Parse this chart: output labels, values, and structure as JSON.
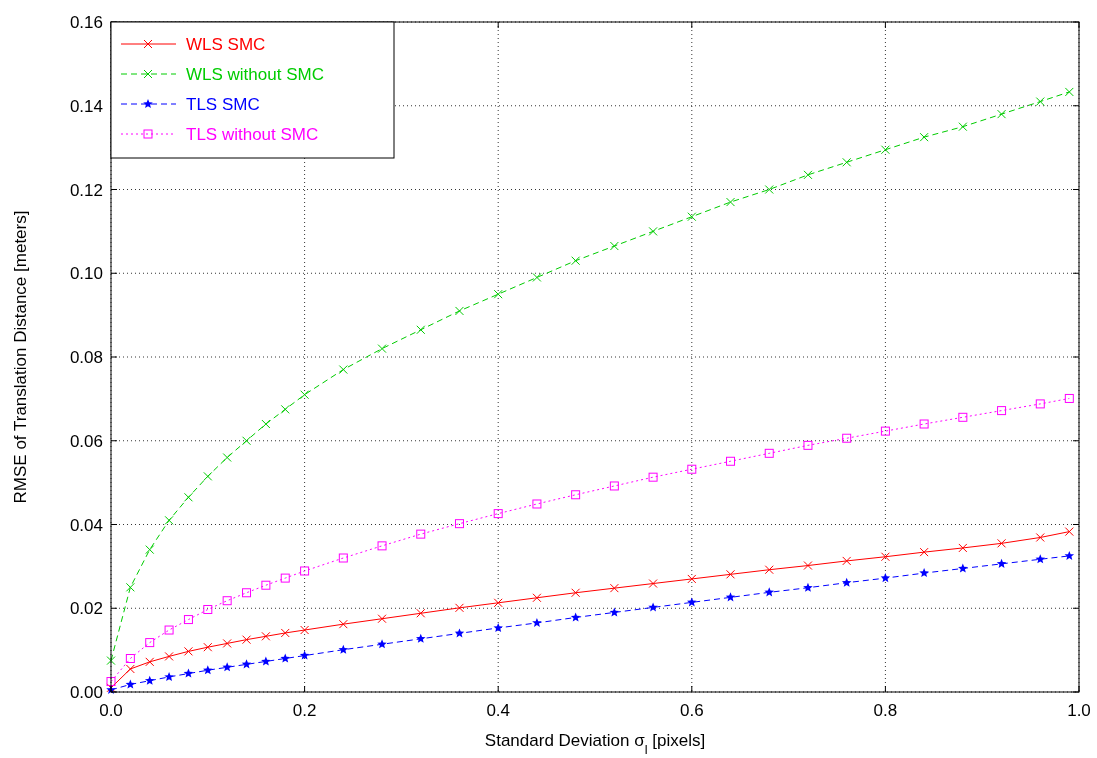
{
  "chart_data": {
    "type": "line",
    "xlabel": "Standard Deviation σ$_{l}$ [pixels]",
    "ylabel": "RMSE of Translation Distance [meters]",
    "xlim": [
      0,
      1
    ],
    "ylim": [
      0,
      0.16
    ],
    "xticks": [
      {
        "value": 0,
        "label": "0.0"
      },
      {
        "value": 0.2,
        "label": "0.2"
      },
      {
        "value": 0.4,
        "label": "0.4"
      },
      {
        "value": 0.6,
        "label": "0.6"
      },
      {
        "value": 0.8,
        "label": "0.8"
      },
      {
        "value": 1,
        "label": "1.0"
      }
    ],
    "yticks": [
      {
        "value": 0,
        "label": "0.00"
      },
      {
        "value": 0.02,
        "label": "0.02"
      },
      {
        "value": 0.04,
        "label": "0.04"
      },
      {
        "value": 0.06,
        "label": "0.06"
      },
      {
        "value": 0.08,
        "label": "0.08"
      },
      {
        "value": 0.1,
        "label": "0.10"
      },
      {
        "value": 0.12,
        "label": "0.12"
      },
      {
        "value": 0.14,
        "label": "0.14"
      },
      {
        "value": 0.16,
        "label": "0.16"
      }
    ],
    "grid": true,
    "legend": "top left",
    "x": [
      0,
      0.02,
      0.04,
      0.06,
      0.08,
      0.1,
      0.12,
      0.14,
      0.16,
      0.18,
      0.2,
      0.24,
      0.28,
      0.32,
      0.36,
      0.4,
      0.44,
      0.48,
      0.52,
      0.56,
      0.6,
      0.64,
      0.68,
      0.72,
      0.76,
      0.8,
      0.84,
      0.88,
      0.92,
      0.96,
      0.99
    ],
    "series": [
      {
        "name": "WLS SMC",
        "color": "#ff0000",
        "marker": "cross",
        "line_style": "solid",
        "values": [
          0.001,
          0.0055,
          0.0072,
          0.0085,
          0.0097,
          0.0107,
          0.0116,
          0.0125,
          0.0133,
          0.0141,
          0.0148,
          0.0162,
          0.0175,
          0.0188,
          0.0201,
          0.0213,
          0.0225,
          0.0237,
          0.0248,
          0.0259,
          0.027,
          0.0281,
          0.0292,
          0.0302,
          0.0313,
          0.0323,
          0.0334,
          0.0344,
          0.0355,
          0.0369,
          0.0383
        ]
      },
      {
        "name": "WLS without SMC",
        "color": "#00cc00",
        "marker": "cross",
        "line_style": "dashed",
        "values": [
          0.0075,
          0.025,
          0.034,
          0.041,
          0.0465,
          0.0515,
          0.056,
          0.06,
          0.064,
          0.0675,
          0.071,
          0.077,
          0.082,
          0.0865,
          0.091,
          0.095,
          0.099,
          0.103,
          0.1065,
          0.11,
          0.1135,
          0.117,
          0.12,
          0.1235,
          0.1265,
          0.1295,
          0.1325,
          0.135,
          0.138,
          0.141,
          0.1433
        ]
      },
      {
        "name": "TLS SMC",
        "color": "#0000ff",
        "marker": "star",
        "line_style": "dashed",
        "values": [
          0.0005,
          0.0018,
          0.0027,
          0.0036,
          0.0044,
          0.0052,
          0.0059,
          0.0066,
          0.0073,
          0.008,
          0.0087,
          0.0101,
          0.0114,
          0.0127,
          0.014,
          0.0153,
          0.0165,
          0.0178,
          0.019,
          0.0202,
          0.0214,
          0.0226,
          0.0238,
          0.0249,
          0.0261,
          0.0272,
          0.0284,
          0.0295,
          0.0306,
          0.0317,
          0.0325
        ]
      },
      {
        "name": "TLS without SMC",
        "color": "#ff00ff",
        "marker": "square",
        "line_style": "dotted",
        "values": [
          0.0025,
          0.008,
          0.0118,
          0.0148,
          0.0173,
          0.0197,
          0.0218,
          0.0237,
          0.0255,
          0.0272,
          0.0289,
          0.032,
          0.0349,
          0.0377,
          0.0402,
          0.0426,
          0.0449,
          0.0471,
          0.0492,
          0.0513,
          0.0532,
          0.0551,
          0.057,
          0.0589,
          0.0606,
          0.0623,
          0.064,
          0.0656,
          0.0672,
          0.0688,
          0.0701
        ]
      }
    ]
  }
}
